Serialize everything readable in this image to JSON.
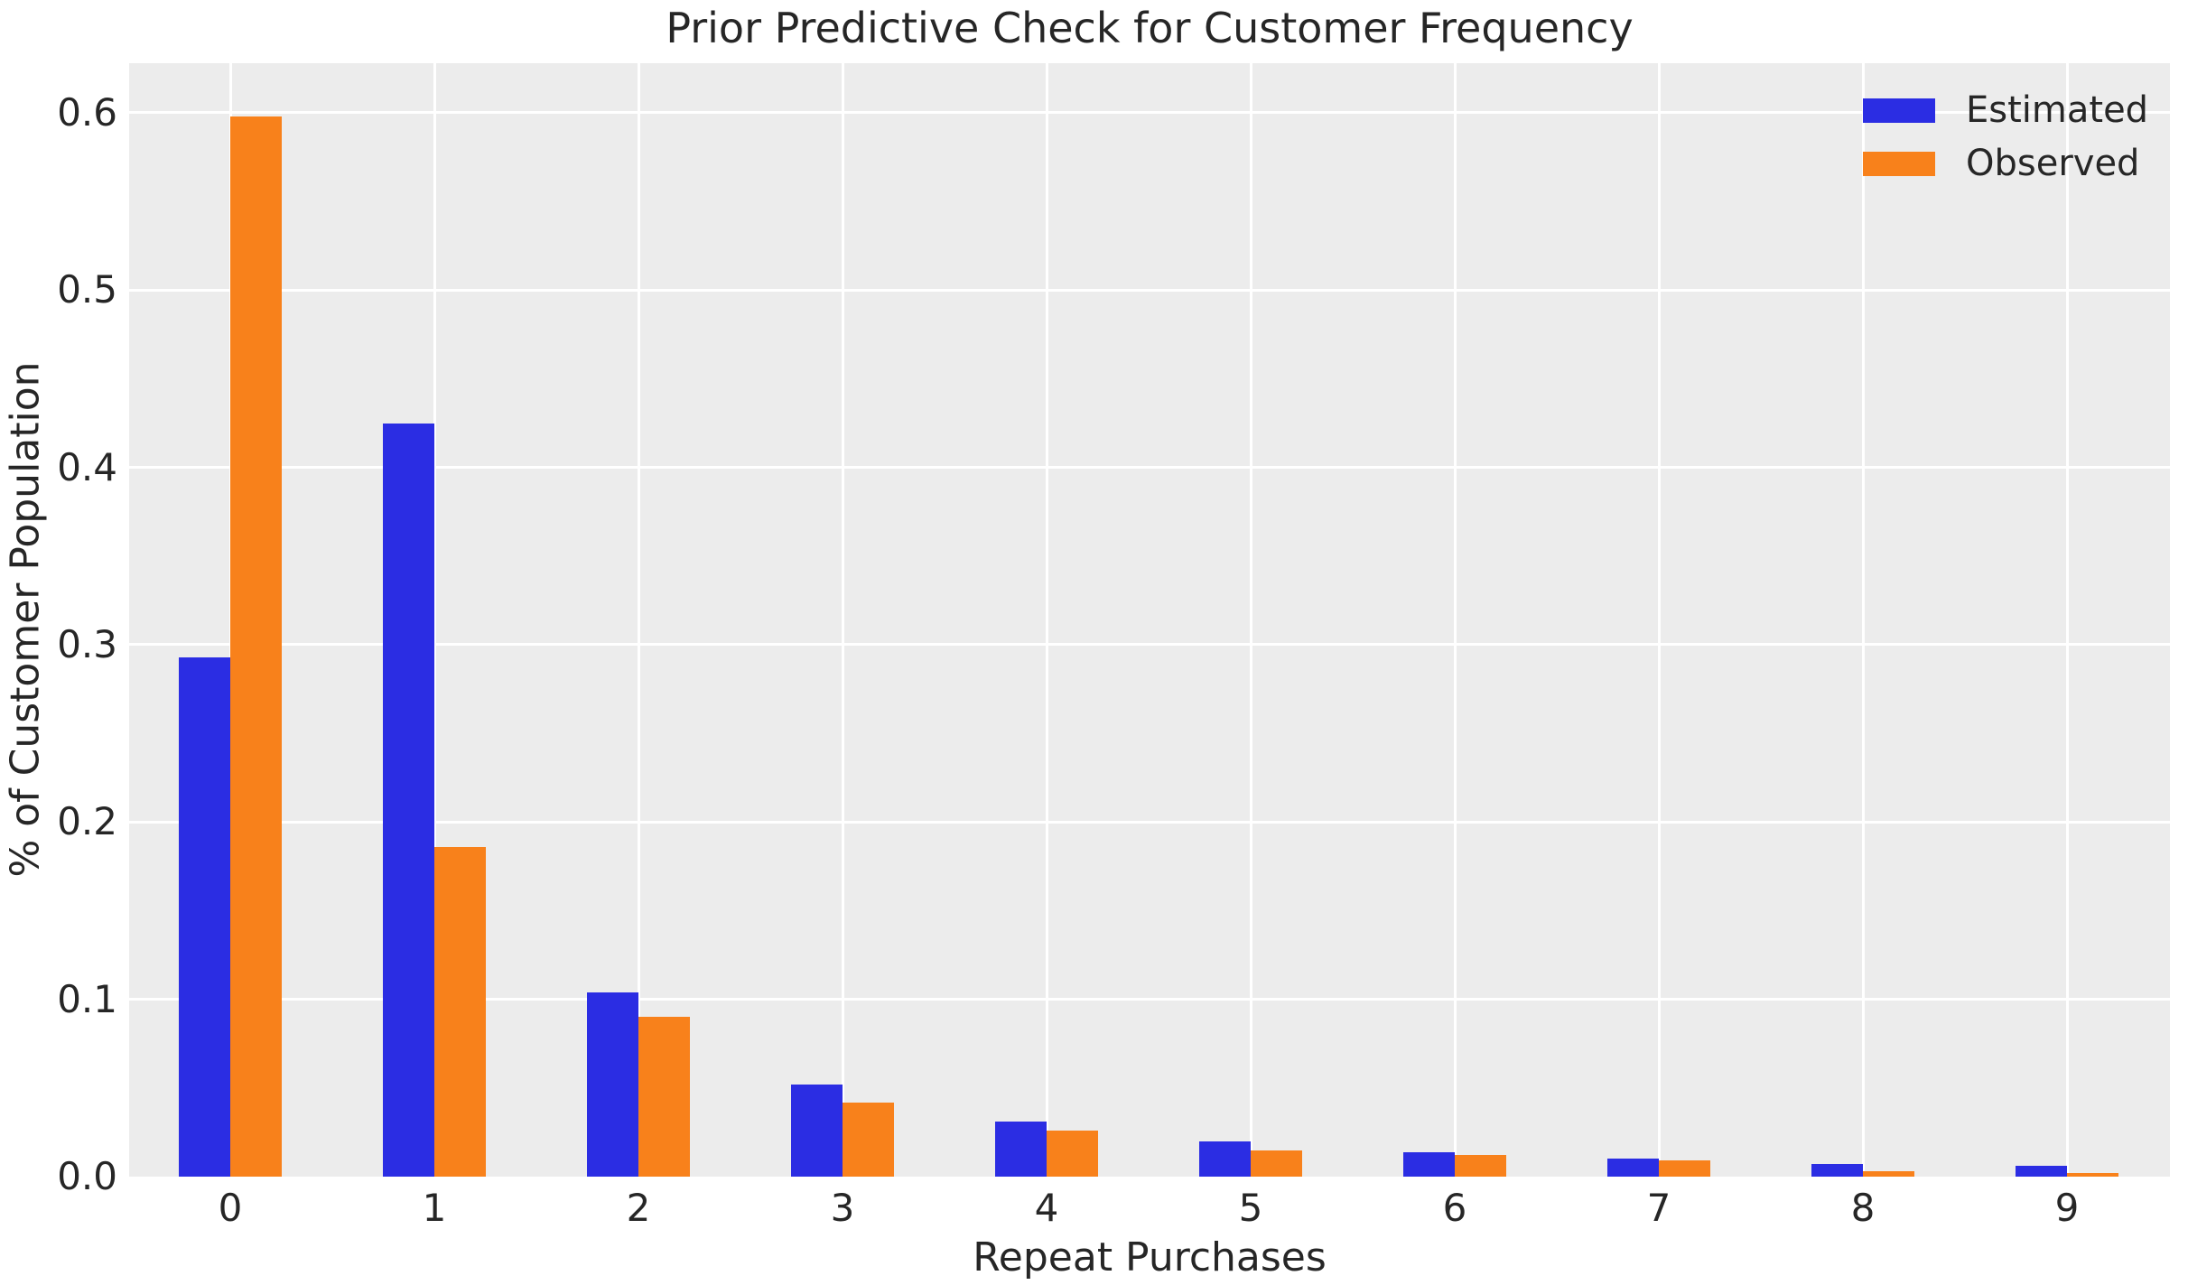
{
  "chart_data": {
    "type": "bar",
    "title": "Prior Predictive Check for Customer Frequency",
    "xlabel": "Repeat Purchases",
    "ylabel": "% of Customer Population",
    "categories": [
      "0",
      "1",
      "2",
      "3",
      "4",
      "5",
      "6",
      "7",
      "8",
      "9"
    ],
    "series": [
      {
        "name": "Estimated",
        "color": "#2b2de3",
        "values": [
          0.293,
          0.425,
          0.104,
          0.052,
          0.031,
          0.02,
          0.014,
          0.01,
          0.007,
          0.006
        ]
      },
      {
        "name": "Observed",
        "color": "#f8811b",
        "values": [
          0.598,
          0.186,
          0.09,
          0.042,
          0.026,
          0.015,
          0.012,
          0.009,
          0.003,
          0.002
        ]
      }
    ],
    "yticks": [
      "0.0",
      "0.1",
      "0.2",
      "0.3",
      "0.4",
      "0.5",
      "0.6"
    ],
    "ylim": [
      0,
      0.628
    ],
    "grid": "on",
    "legend_position": "upper right",
    "colors": {
      "plot_background": "#ececec",
      "figure_background": "#ffffff",
      "gridline": "#ffffff",
      "text": "#262626"
    }
  }
}
